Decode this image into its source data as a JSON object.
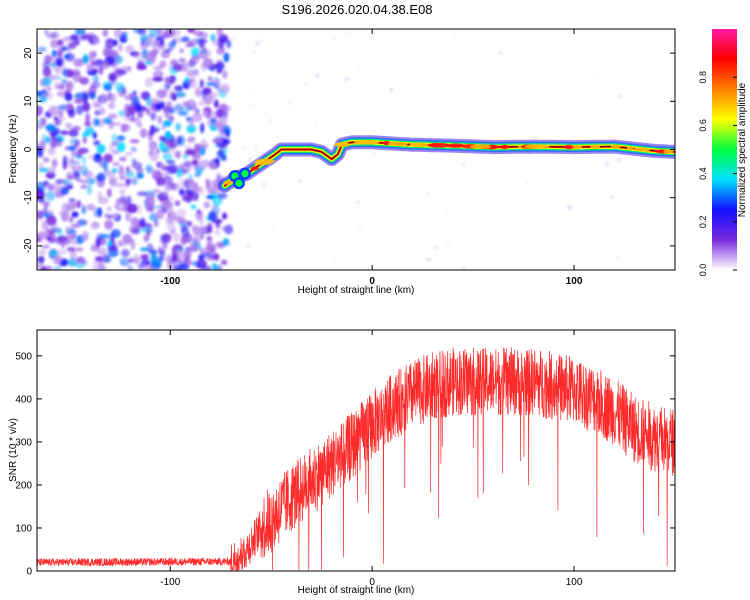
{
  "title": "S196.2026.020.04.38.E08",
  "chart_data": [
    {
      "type": "heatmap",
      "name": "spectrogram",
      "xlabel": "Height of straight line (km)",
      "ylabel": "Frequency (Hz)",
      "xlim": [
        -166,
        150
      ],
      "ylim": [
        -25,
        25
      ],
      "x_ticks": [
        -100,
        0,
        100
      ],
      "y_ticks": [
        -20,
        -10,
        0,
        10,
        20
      ],
      "noise_region_x": [
        -166,
        -73
      ],
      "ridge": {
        "x": [
          -73,
          -68,
          -62,
          -55,
          -48,
          -45,
          -40,
          -35,
          -30,
          -25,
          -20,
          -17,
          -15,
          -10,
          0,
          20,
          40,
          60,
          80,
          100,
          120,
          140,
          150
        ],
        "y": [
          -7.5,
          -6,
          -5,
          -3,
          -1,
          0,
          0,
          0,
          0,
          -0.5,
          -2,
          -1,
          1,
          1.5,
          1.5,
          1,
          0.8,
          0.5,
          0.6,
          0.5,
          0.6,
          -0.3,
          -0.5
        ]
      },
      "colorbar": {
        "label": "Normalized spectral amplitude",
        "ticks": [
          0.0,
          0.2,
          0.4,
          0.6,
          0.8
        ],
        "tick_labels": [
          "0.0",
          "0.2",
          "0.4",
          "0.6",
          "0.8"
        ],
        "range": [
          0,
          1
        ],
        "colors": [
          "#ffffff",
          "#7a2be0",
          "#1010ff",
          "#00e0ff",
          "#00ff40",
          "#ffff00",
          "#ff8000",
          "#ff0000",
          "#ff1aa0"
        ]
      }
    },
    {
      "type": "line",
      "name": "snr",
      "xlabel": "Height of straight line (km)",
      "ylabel": "SNR (10 * v/v)",
      "xlim": [
        -166,
        150
      ],
      "ylim": [
        0,
        560
      ],
      "x_ticks": [
        -100,
        0,
        100
      ],
      "y_ticks": [
        0,
        100,
        200,
        300,
        400,
        500
      ],
      "color": "#ff2020",
      "envelope": {
        "x": [
          -166,
          -70,
          -62,
          -55,
          -50,
          -40,
          -30,
          -20,
          -10,
          0,
          10,
          20,
          30,
          40,
          60,
          80,
          100,
          110,
          120,
          130,
          140,
          150
        ],
        "y": [
          20,
          22,
          50,
          100,
          120,
          170,
          210,
          250,
          290,
          340,
          380,
          410,
          430,
          440,
          440,
          440,
          420,
          400,
          370,
          330,
          310,
          300
        ]
      }
    }
  ]
}
